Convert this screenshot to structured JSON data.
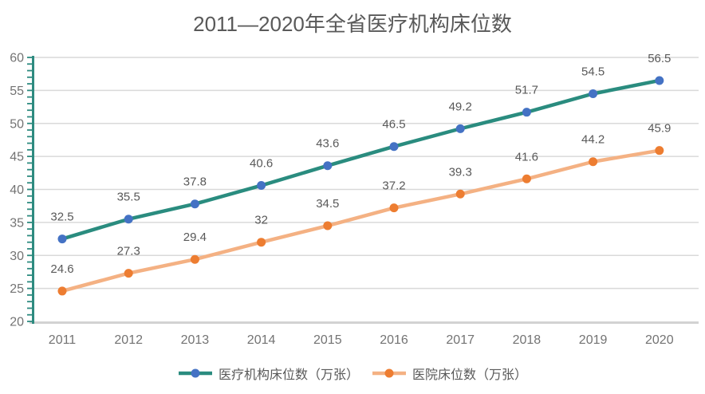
{
  "chart_data": {
    "type": "line",
    "title": "2011—2020年全省医疗机构床位数",
    "categories": [
      "2011",
      "2012",
      "2013",
      "2014",
      "2015",
      "2016",
      "2017",
      "2018",
      "2019",
      "2020"
    ],
    "series": [
      {
        "name": "医疗机构床位数（万张）",
        "values": [
          32.5,
          35.5,
          37.8,
          40.6,
          43.6,
          46.5,
          49.2,
          51.7,
          54.5,
          56.5
        ],
        "line_color": "#2A8C7F",
        "marker_color": "#4472C4"
      },
      {
        "name": "医院床位数（万张）",
        "values": [
          24.6,
          27.3,
          29.4,
          32,
          34.5,
          37.2,
          39.3,
          41.6,
          44.2,
          45.9
        ],
        "line_color": "#F4B183",
        "marker_color": "#ED7D31"
      }
    ],
    "xlabel": "",
    "ylabel": "",
    "ylim": [
      20,
      60
    ],
    "y_tick_step": 5,
    "y_minor_tick_step": 1,
    "grid": true,
    "data_labels": true,
    "legend_position": "bottom"
  },
  "style": {
    "background": "#FFFFFF",
    "title_color": "#595959",
    "grid_color": "#D9D9D9",
    "x_axis_line_color": "#D2D2D2",
    "y_axis_line_color": "#2E8B80",
    "tick_label_color": "#737373",
    "data_label_color": "#595959",
    "legend_text_color": "#595959"
  }
}
